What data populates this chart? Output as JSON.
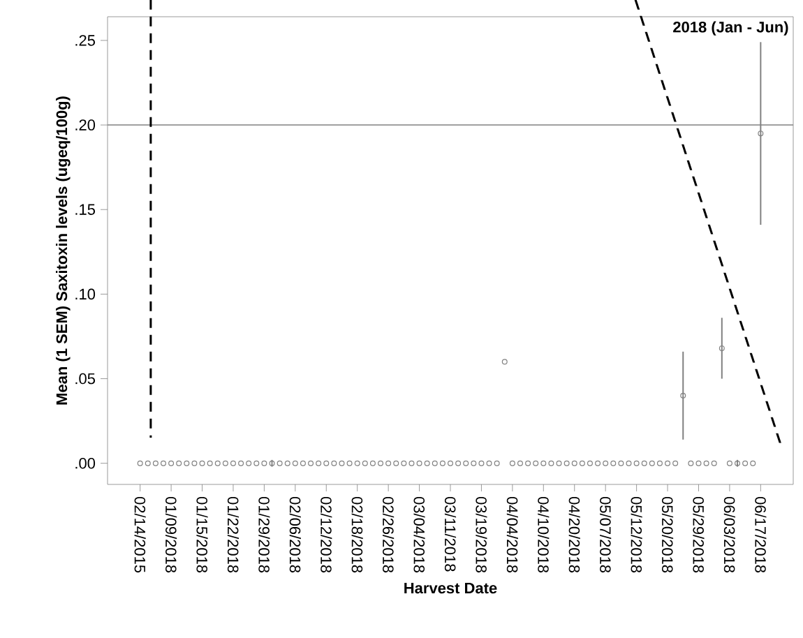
{
  "chart_data": {
    "type": "scatter",
    "xlabel": "Harvest Date",
    "ylabel": "Mean (1 SEM) Saxitoxin levels (ugeq/100g)",
    "annotations": [
      "2018 (Jan - Jun)"
    ],
    "categories": [
      "02/14/2015",
      null,
      null,
      null,
      "01/09/2018",
      null,
      null,
      null,
      "01/15/2018",
      null,
      null,
      null,
      "01/22/2018",
      null,
      null,
      null,
      "01/29/2018",
      null,
      null,
      null,
      "02/06/2018",
      null,
      null,
      null,
      "02/12/2018",
      null,
      null,
      null,
      "02/18/2018",
      null,
      null,
      null,
      "02/26/2018",
      null,
      null,
      null,
      "03/04/2018",
      null,
      null,
      null,
      "03/11/2018",
      null,
      null,
      null,
      "03/19/2018",
      null,
      null,
      null,
      "04/04/2018",
      null,
      null,
      null,
      "04/10/2018",
      null,
      null,
      null,
      "04/20/2018",
      null,
      null,
      null,
      "05/07/2018",
      null,
      null,
      null,
      "05/12/2018",
      null,
      null,
      null,
      "05/20/2018",
      null,
      null,
      null,
      "05/29/2018",
      null,
      null,
      null,
      "06/03/2018",
      null,
      null,
      null,
      "06/17/2018"
    ],
    "values": [
      0,
      0,
      0,
      0,
      0,
      0,
      0,
      0,
      0,
      0,
      0,
      0,
      0,
      0,
      0,
      0,
      0,
      0,
      0,
      0,
      0,
      0,
      0,
      0,
      0,
      0,
      0,
      0,
      0,
      0,
      0,
      0,
      0,
      0,
      0,
      0,
      0,
      0,
      0,
      0,
      0,
      0,
      0,
      0,
      0,
      0,
      0,
      0.06,
      0,
      0,
      0,
      0,
      0,
      0,
      0,
      0,
      0,
      0,
      0,
      0,
      0,
      0,
      0,
      0,
      0,
      0,
      0,
      0,
      0,
      0,
      0.04,
      0,
      0,
      0,
      0,
      0.068,
      0,
      0,
      0,
      0,
      0.195
    ],
    "errors": [
      null,
      null,
      null,
      null,
      null,
      null,
      null,
      null,
      null,
      null,
      null,
      null,
      null,
      null,
      null,
      null,
      null,
      0.002,
      null,
      null,
      null,
      null,
      null,
      null,
      null,
      null,
      null,
      null,
      null,
      null,
      null,
      null,
      null,
      null,
      null,
      null,
      null,
      null,
      null,
      null,
      null,
      null,
      null,
      null,
      null,
      null,
      null,
      null,
      null,
      null,
      null,
      null,
      null,
      null,
      null,
      null,
      null,
      null,
      null,
      null,
      null,
      null,
      null,
      null,
      null,
      null,
      null,
      null,
      null,
      null,
      0.026,
      null,
      null,
      null,
      null,
      0.018,
      null,
      0.002,
      null,
      null,
      0.054
    ],
    "color": "#808080",
    "marker": "circle",
    "ylim": [
      -0.0125,
      0.264
    ],
    "yticks": [
      {
        "value": 0,
        "label": ".00"
      },
      {
        "value": 0.05,
        "label": ".05"
      },
      {
        "value": 0.1,
        "label": ".10"
      },
      {
        "value": 0.15,
        "label": ".15"
      },
      {
        "value": 0.2,
        "label": ".20"
      },
      {
        "value": 0.25,
        "label": ".25"
      }
    ],
    "ref_lines": [
      {
        "axis": "y",
        "value": 0.2,
        "color": "#808080"
      }
    ],
    "grid": false
  }
}
